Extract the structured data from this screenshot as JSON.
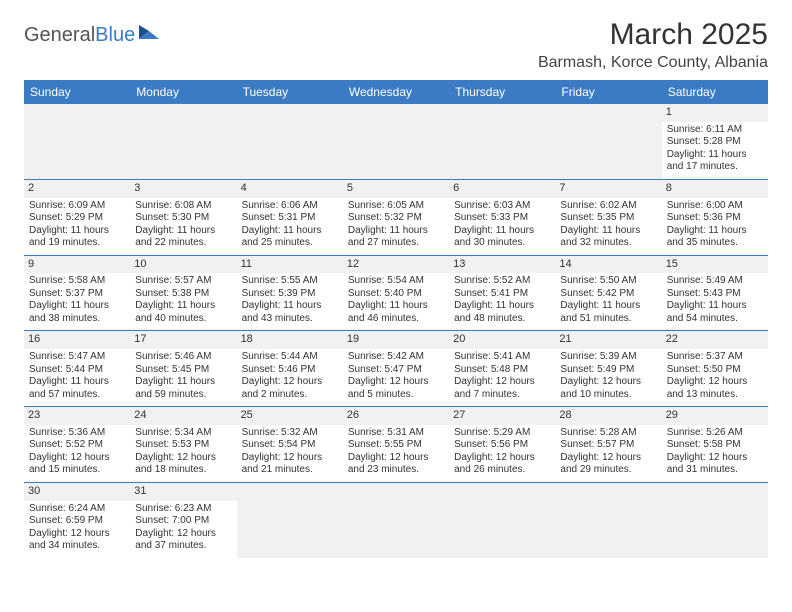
{
  "logo": {
    "part1": "General",
    "part2": "Blue"
  },
  "title": "March 2025",
  "location": "Barmash, Korce County, Albania",
  "colors": {
    "header_bg": "#3b7bc4",
    "header_text": "#ffffff",
    "daynum_bg": "#f1f1f1",
    "border": "#3b7bc4",
    "text": "#333333",
    "logo_gray": "#555555",
    "logo_blue": "#3b7bc4"
  },
  "weekdays": [
    "Sunday",
    "Monday",
    "Tuesday",
    "Wednesday",
    "Thursday",
    "Friday",
    "Saturday"
  ],
  "weeks": [
    [
      null,
      null,
      null,
      null,
      null,
      null,
      {
        "n": "1",
        "sunrise": "Sunrise: 6:11 AM",
        "sunset": "Sunset: 5:28 PM",
        "daylight": "Daylight: 11 hours and 17 minutes."
      }
    ],
    [
      {
        "n": "2",
        "sunrise": "Sunrise: 6:09 AM",
        "sunset": "Sunset: 5:29 PM",
        "daylight": "Daylight: 11 hours and 19 minutes."
      },
      {
        "n": "3",
        "sunrise": "Sunrise: 6:08 AM",
        "sunset": "Sunset: 5:30 PM",
        "daylight": "Daylight: 11 hours and 22 minutes."
      },
      {
        "n": "4",
        "sunrise": "Sunrise: 6:06 AM",
        "sunset": "Sunset: 5:31 PM",
        "daylight": "Daylight: 11 hours and 25 minutes."
      },
      {
        "n": "5",
        "sunrise": "Sunrise: 6:05 AM",
        "sunset": "Sunset: 5:32 PM",
        "daylight": "Daylight: 11 hours and 27 minutes."
      },
      {
        "n": "6",
        "sunrise": "Sunrise: 6:03 AM",
        "sunset": "Sunset: 5:33 PM",
        "daylight": "Daylight: 11 hours and 30 minutes."
      },
      {
        "n": "7",
        "sunrise": "Sunrise: 6:02 AM",
        "sunset": "Sunset: 5:35 PM",
        "daylight": "Daylight: 11 hours and 32 minutes."
      },
      {
        "n": "8",
        "sunrise": "Sunrise: 6:00 AM",
        "sunset": "Sunset: 5:36 PM",
        "daylight": "Daylight: 11 hours and 35 minutes."
      }
    ],
    [
      {
        "n": "9",
        "sunrise": "Sunrise: 5:58 AM",
        "sunset": "Sunset: 5:37 PM",
        "daylight": "Daylight: 11 hours and 38 minutes."
      },
      {
        "n": "10",
        "sunrise": "Sunrise: 5:57 AM",
        "sunset": "Sunset: 5:38 PM",
        "daylight": "Daylight: 11 hours and 40 minutes."
      },
      {
        "n": "11",
        "sunrise": "Sunrise: 5:55 AM",
        "sunset": "Sunset: 5:39 PM",
        "daylight": "Daylight: 11 hours and 43 minutes."
      },
      {
        "n": "12",
        "sunrise": "Sunrise: 5:54 AM",
        "sunset": "Sunset: 5:40 PM",
        "daylight": "Daylight: 11 hours and 46 minutes."
      },
      {
        "n": "13",
        "sunrise": "Sunrise: 5:52 AM",
        "sunset": "Sunset: 5:41 PM",
        "daylight": "Daylight: 11 hours and 48 minutes."
      },
      {
        "n": "14",
        "sunrise": "Sunrise: 5:50 AM",
        "sunset": "Sunset: 5:42 PM",
        "daylight": "Daylight: 11 hours and 51 minutes."
      },
      {
        "n": "15",
        "sunrise": "Sunrise: 5:49 AM",
        "sunset": "Sunset: 5:43 PM",
        "daylight": "Daylight: 11 hours and 54 minutes."
      }
    ],
    [
      {
        "n": "16",
        "sunrise": "Sunrise: 5:47 AM",
        "sunset": "Sunset: 5:44 PM",
        "daylight": "Daylight: 11 hours and 57 minutes."
      },
      {
        "n": "17",
        "sunrise": "Sunrise: 5:46 AM",
        "sunset": "Sunset: 5:45 PM",
        "daylight": "Daylight: 11 hours and 59 minutes."
      },
      {
        "n": "18",
        "sunrise": "Sunrise: 5:44 AM",
        "sunset": "Sunset: 5:46 PM",
        "daylight": "Daylight: 12 hours and 2 minutes."
      },
      {
        "n": "19",
        "sunrise": "Sunrise: 5:42 AM",
        "sunset": "Sunset: 5:47 PM",
        "daylight": "Daylight: 12 hours and 5 minutes."
      },
      {
        "n": "20",
        "sunrise": "Sunrise: 5:41 AM",
        "sunset": "Sunset: 5:48 PM",
        "daylight": "Daylight: 12 hours and 7 minutes."
      },
      {
        "n": "21",
        "sunrise": "Sunrise: 5:39 AM",
        "sunset": "Sunset: 5:49 PM",
        "daylight": "Daylight: 12 hours and 10 minutes."
      },
      {
        "n": "22",
        "sunrise": "Sunrise: 5:37 AM",
        "sunset": "Sunset: 5:50 PM",
        "daylight": "Daylight: 12 hours and 13 minutes."
      }
    ],
    [
      {
        "n": "23",
        "sunrise": "Sunrise: 5:36 AM",
        "sunset": "Sunset: 5:52 PM",
        "daylight": "Daylight: 12 hours and 15 minutes."
      },
      {
        "n": "24",
        "sunrise": "Sunrise: 5:34 AM",
        "sunset": "Sunset: 5:53 PM",
        "daylight": "Daylight: 12 hours and 18 minutes."
      },
      {
        "n": "25",
        "sunrise": "Sunrise: 5:32 AM",
        "sunset": "Sunset: 5:54 PM",
        "daylight": "Daylight: 12 hours and 21 minutes."
      },
      {
        "n": "26",
        "sunrise": "Sunrise: 5:31 AM",
        "sunset": "Sunset: 5:55 PM",
        "daylight": "Daylight: 12 hours and 23 minutes."
      },
      {
        "n": "27",
        "sunrise": "Sunrise: 5:29 AM",
        "sunset": "Sunset: 5:56 PM",
        "daylight": "Daylight: 12 hours and 26 minutes."
      },
      {
        "n": "28",
        "sunrise": "Sunrise: 5:28 AM",
        "sunset": "Sunset: 5:57 PM",
        "daylight": "Daylight: 12 hours and 29 minutes."
      },
      {
        "n": "29",
        "sunrise": "Sunrise: 5:26 AM",
        "sunset": "Sunset: 5:58 PM",
        "daylight": "Daylight: 12 hours and 31 minutes."
      }
    ],
    [
      {
        "n": "30",
        "sunrise": "Sunrise: 6:24 AM",
        "sunset": "Sunset: 6:59 PM",
        "daylight": "Daylight: 12 hours and 34 minutes."
      },
      {
        "n": "31",
        "sunrise": "Sunrise: 6:23 AM",
        "sunset": "Sunset: 7:00 PM",
        "daylight": "Daylight: 12 hours and 37 minutes."
      },
      null,
      null,
      null,
      null,
      null
    ]
  ]
}
